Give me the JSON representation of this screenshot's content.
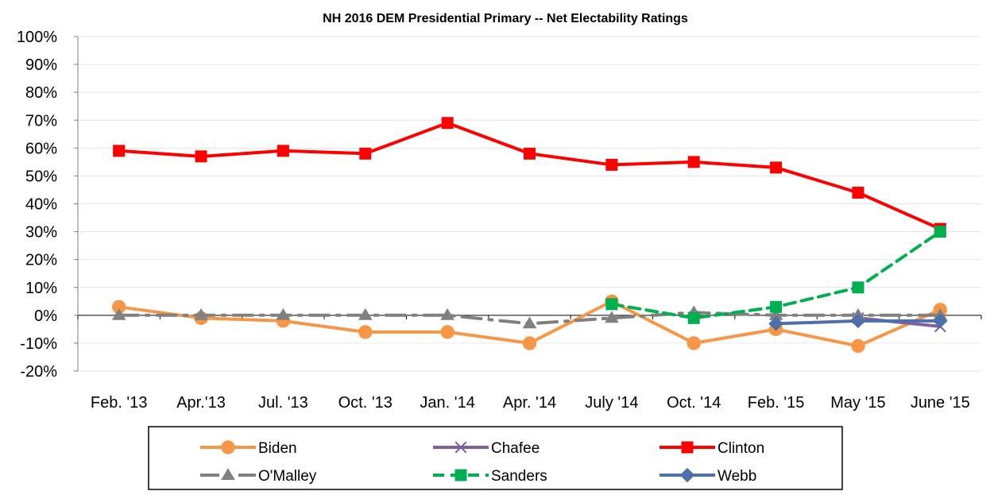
{
  "chart_data": {
    "type": "line",
    "title": "NH 2016 DEM Presidential Primary -- Net Electability Ratings",
    "xlabel": "",
    "ylabel": "",
    "ylim": [
      -20,
      100
    ],
    "y_ticks": [
      "-20%",
      "-10%",
      "0%",
      "10%",
      "20%",
      "30%",
      "40%",
      "50%",
      "60%",
      "70%",
      "80%",
      "90%",
      "100%"
    ],
    "categories": [
      "Feb. '13",
      "Apr.'13",
      "Jul. '13",
      "Oct. '13",
      "Jan. '14",
      "Apr. '14",
      "July '14",
      "Oct. '14",
      "Feb. '15",
      "May '15",
      "June '15"
    ],
    "grid": true,
    "legend_position": "bottom",
    "series": [
      {
        "name": "Biden",
        "color": "#F79646",
        "marker": "circle",
        "dash": "solid",
        "values": [
          3,
          -1,
          -2,
          -6,
          -6,
          -10,
          5,
          -10,
          -5,
          -11,
          2
        ]
      },
      {
        "name": "Chafee",
        "color": "#7F5F9F",
        "marker": "x",
        "dash": "solid",
        "values": [
          null,
          null,
          null,
          null,
          null,
          null,
          null,
          null,
          null,
          -1,
          -4
        ]
      },
      {
        "name": "Clinton",
        "color": "#FF0000",
        "marker": "square",
        "dash": "solid",
        "values": [
          59,
          57,
          59,
          58,
          69,
          58,
          54,
          55,
          53,
          44,
          31
        ]
      },
      {
        "name": "O'Malley",
        "color": "#808080",
        "marker": "triangle",
        "dash": "longdashdot",
        "values": [
          0,
          0,
          0,
          0,
          0,
          -3,
          -1,
          1,
          0,
          0,
          0
        ]
      },
      {
        "name": "Sanders",
        "color": "#00B050",
        "marker": "square",
        "dash": "dash",
        "values": [
          null,
          null,
          null,
          null,
          null,
          null,
          4,
          -1,
          3,
          10,
          30
        ]
      },
      {
        "name": "Webb",
        "color": "#4F6FA8",
        "marker": "diamond",
        "dash": "solid",
        "values": [
          null,
          null,
          null,
          null,
          null,
          null,
          null,
          null,
          -3,
          -2,
          -2
        ]
      }
    ]
  }
}
